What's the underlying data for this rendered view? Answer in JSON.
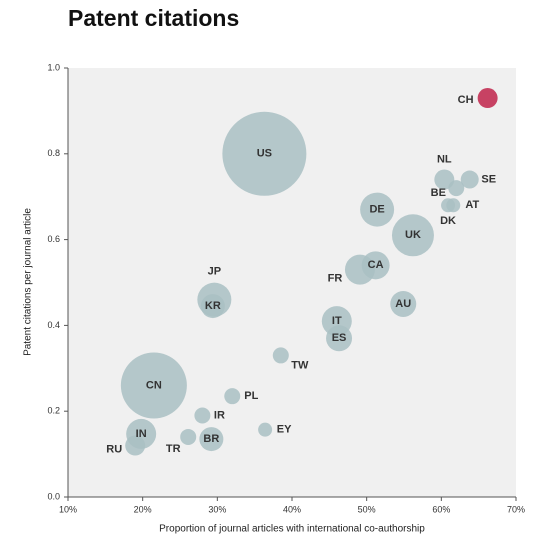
{
  "chart_data": {
    "type": "scatter",
    "title": "Patent citations",
    "xlabel": "Proportion of journal articles with international co-authorship",
    "ylabel": "Patent citations per journal article",
    "labels": [
      "CH",
      "US",
      "NL",
      "SE",
      "BE",
      "AT",
      "DK",
      "DE",
      "UK",
      "CA",
      "FR",
      "JP",
      "KR",
      "AU",
      "IT",
      "ES",
      "TW",
      "CN",
      "PL",
      "IR",
      "EY",
      "IN",
      "BR",
      "TR",
      "RU"
    ],
    "x": [
      66.2,
      36.3,
      60.4,
      63.8,
      62.0,
      61.6,
      60.9,
      51.4,
      56.2,
      51.2,
      49.1,
      29.6,
      29.4,
      54.9,
      46.0,
      46.3,
      38.5,
      21.5,
      32.0,
      28.0,
      36.4,
      19.8,
      29.2,
      26.1,
      19.0
    ],
    "values": [
      0.93,
      0.8,
      0.74,
      0.74,
      0.72,
      0.68,
      0.68,
      0.67,
      0.61,
      0.54,
      0.53,
      0.46,
      0.445,
      0.45,
      0.41,
      0.37,
      0.33,
      0.26,
      0.235,
      0.19,
      0.157,
      0.147,
      0.135,
      0.14,
      0.12
    ],
    "sizes": [
      100,
      1764,
      100,
      81,
      64,
      49,
      49,
      289,
      441,
      196,
      225,
      289,
      144,
      169,
      225,
      169,
      64,
      1089,
      64,
      64,
      49,
      225,
      144,
      64,
      100
    ],
    "colors": [
      "#c0234a",
      "#a9bfc3",
      "#a9bfc3",
      "#a9bfc3",
      "#a9bfc3",
      "#a9bfc3",
      "#a9bfc3",
      "#a9bfc3",
      "#a9bfc3",
      "#a9bfc3",
      "#a9bfc3",
      "#a9bfc3",
      "#a9bfc3",
      "#a9bfc3",
      "#a9bfc3",
      "#a9bfc3",
      "#a9bfc3",
      "#a9bfc3",
      "#a9bfc3",
      "#a9bfc3",
      "#a9bfc3",
      "#a9bfc3",
      "#a9bfc3",
      "#a9bfc3",
      "#a9bfc3"
    ],
    "xlim": [
      10,
      70
    ],
    "xticks": [
      {
        "value": 10,
        "label": "10%"
      },
      {
        "value": 20,
        "label": "20%"
      },
      {
        "value": 30,
        "label": "30%"
      },
      {
        "value": 40,
        "label": "40%"
      },
      {
        "value": 50,
        "label": "50%"
      },
      {
        "value": 60,
        "label": "60%"
      },
      {
        "value": 70,
        "label": "70%"
      }
    ],
    "ylim": [
      0,
      1
    ],
    "yticks": [
      {
        "value": 0,
        "label": "0.0"
      },
      0.2,
      0.4,
      0.6,
      0.8,
      {
        "value": 1,
        "label": "1.0"
      }
    ]
  }
}
